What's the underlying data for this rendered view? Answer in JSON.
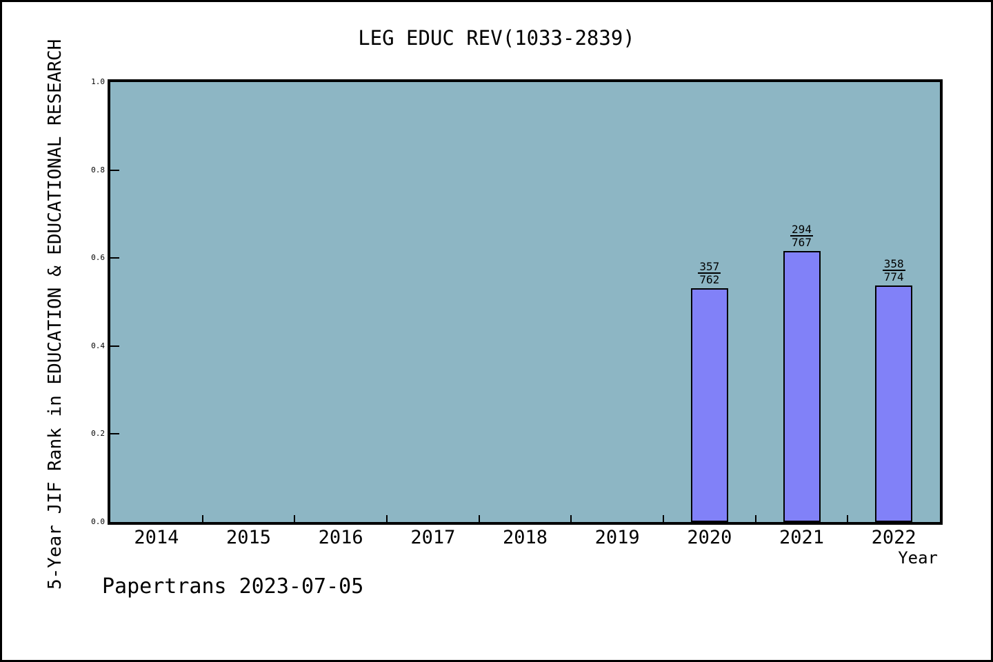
{
  "chart_data": {
    "type": "bar",
    "title": "LEG EDUC REV(1033-2839)",
    "xlabel": "Year",
    "ylabel": "5-Year JIF Rank in EDUCATION & EDUCATIONAL RESEARCH",
    "watermark": "Papertrans 2023-07-05",
    "categories": [
      "2014",
      "2015",
      "2016",
      "2017",
      "2018",
      "2019",
      "2020",
      "2021",
      "2022"
    ],
    "bars": [
      {
        "category": "2020",
        "label_numerator": "357",
        "label_denominator": "762",
        "value": 0.5315
      },
      {
        "category": "2021",
        "label_numerator": "294",
        "label_denominator": "767",
        "value": 0.6167
      },
      {
        "category": "2022",
        "label_numerator": "358",
        "label_denominator": "774",
        "value": 0.5375
      }
    ],
    "yticks": [
      0.0,
      0.2,
      0.4,
      0.6,
      0.8,
      1.0
    ],
    "ytick_labels": [
      "0.0",
      "0.2",
      "0.4",
      "0.6",
      "0.8",
      "1.0"
    ],
    "ylim": [
      0,
      1
    ],
    "grid": false,
    "legend": null,
    "colors": {
      "plot_background": "#8DB6C4",
      "bar_fill": "#8181F8",
      "bar_edge": "#000000",
      "text": "#000000",
      "frame_border": "#000000"
    }
  }
}
